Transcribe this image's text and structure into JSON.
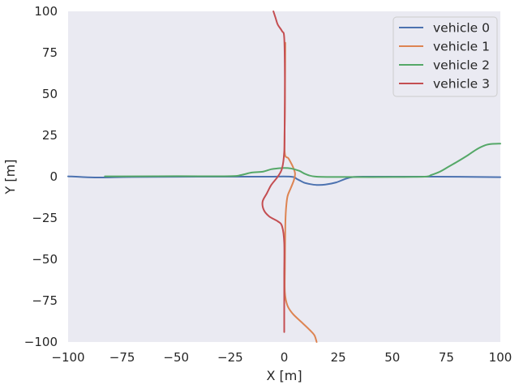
{
  "chart_data": {
    "type": "line",
    "title": "",
    "xlabel": "X [m]",
    "ylabel": "Y [m]",
    "xlim": [
      -100,
      100
    ],
    "ylim": [
      -100,
      100
    ],
    "xticks": [
      "−100",
      "−75",
      "−50",
      "−25",
      "0",
      "25",
      "50",
      "75",
      "100"
    ],
    "yticks": [
      "−100",
      "−75",
      "−50",
      "−25",
      "0",
      "25",
      "50",
      "75",
      "100"
    ],
    "grid": false,
    "legend_position": "top-right",
    "series": [
      {
        "name": "vehicle 0",
        "color": "#4c72b0",
        "points": [
          [
            -100,
            0.2
          ],
          [
            -92,
            -0.3
          ],
          [
            -84,
            -0.5
          ],
          [
            -70,
            -0.2
          ],
          [
            -40,
            0
          ],
          [
            -10,
            0
          ],
          [
            3,
            0
          ],
          [
            6,
            -1.5
          ],
          [
            9,
            -3.5
          ],
          [
            12,
            -4.5
          ],
          [
            15,
            -5
          ],
          [
            19,
            -4.8
          ],
          [
            24,
            -3.5
          ],
          [
            28,
            -1.5
          ],
          [
            32,
            -0.2
          ],
          [
            40,
            0
          ],
          [
            70,
            0
          ],
          [
            100,
            -0.3
          ]
        ]
      },
      {
        "name": "vehicle 1",
        "color": "#dd8452",
        "points": [
          [
            0.5,
            81
          ],
          [
            0.3,
            40
          ],
          [
            0.2,
            15
          ],
          [
            2,
            11
          ],
          [
            4,
            6
          ],
          [
            5,
            2
          ],
          [
            4.5,
            -2
          ],
          [
            3,
            -7
          ],
          [
            1.5,
            -12
          ],
          [
            0.8,
            -20
          ],
          [
            0.5,
            -30
          ],
          [
            0.3,
            -55
          ],
          [
            0.3,
            -70
          ],
          [
            1.5,
            -78
          ],
          [
            4,
            -83
          ],
          [
            8,
            -88
          ],
          [
            12,
            -93
          ],
          [
            14,
            -96
          ],
          [
            15,
            -100
          ]
        ]
      },
      {
        "name": "vehicle 2",
        "color": "#55a868",
        "points": [
          [
            -83,
            0.2
          ],
          [
            -75,
            0.2
          ],
          [
            -50,
            0.3
          ],
          [
            -25,
            0.3
          ],
          [
            -20,
            1
          ],
          [
            -15,
            2.5
          ],
          [
            -10,
            3
          ],
          [
            -6,
            4.5
          ],
          [
            -3,
            5
          ],
          [
            0,
            5.3
          ],
          [
            3,
            5
          ],
          [
            7,
            3.5
          ],
          [
            10,
            1.5
          ],
          [
            15,
            0
          ],
          [
            30,
            -0.2
          ],
          [
            50,
            -0.2
          ],
          [
            65,
            0
          ],
          [
            68,
            1
          ],
          [
            72,
            3
          ],
          [
            76,
            6
          ],
          [
            80,
            9
          ],
          [
            85,
            13
          ],
          [
            89,
            16.5
          ],
          [
            93,
            19
          ],
          [
            96,
            19.8
          ],
          [
            100,
            20
          ]
        ]
      },
      {
        "name": "vehicle 3",
        "color": "#c44e52",
        "points": [
          [
            -5,
            100
          ],
          [
            -4,
            96
          ],
          [
            -3,
            92
          ],
          [
            -1,
            88
          ],
          [
            0,
            84
          ],
          [
            0.3,
            60
          ],
          [
            0.2,
            30
          ],
          [
            0,
            15
          ],
          [
            -1,
            5
          ],
          [
            -3,
            0
          ],
          [
            -6,
            -5
          ],
          [
            -8,
            -10
          ],
          [
            -10,
            -15
          ],
          [
            -9.5,
            -20
          ],
          [
            -7,
            -24
          ],
          [
            -3,
            -27
          ],
          [
            -1,
            -30
          ],
          [
            0,
            -40
          ],
          [
            0,
            -60
          ],
          [
            0,
            -80
          ],
          [
            0,
            -94
          ]
        ]
      }
    ]
  }
}
